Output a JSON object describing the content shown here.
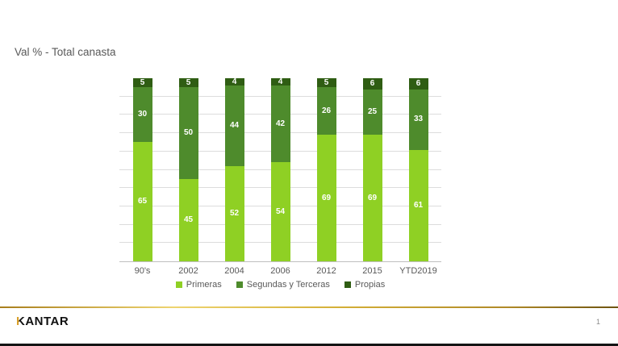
{
  "slide": {
    "title": "Val % - Total canasta",
    "logo_k": "K",
    "logo_rest": "ANTAR",
    "page_number": "1"
  },
  "colors": {
    "title_text": "#595959",
    "gold_divider": "#D4AF37",
    "logo_accent": "#D9A02C",
    "axis_line": "#BFBFBF",
    "gridline": "#DCDCDC",
    "bar_value_label": "#FFFFFF"
  },
  "chart_data": {
    "type": "bar",
    "stacked": true,
    "title": "Val % - Total canasta",
    "categories": [
      "90's",
      "2002",
      "2004",
      "2006",
      "2012",
      "2015",
      "YTD2019"
    ],
    "series": [
      {
        "name": "Primeras",
        "color": "#8FD024",
        "values": [
          65,
          45,
          52,
          54,
          69,
          69,
          61
        ]
      },
      {
        "name": "Segundas y Terceras",
        "color": "#4E8B2C",
        "values": [
          30,
          50,
          44,
          42,
          26,
          25,
          33
        ]
      },
      {
        "name": "Propias",
        "color": "#2F5D13",
        "values": [
          5,
          5,
          4,
          4,
          5,
          6,
          6
        ]
      }
    ],
    "xlabel": "",
    "ylabel": "",
    "ylim": [
      0,
      100
    ],
    "gridline_step": 10,
    "grid": true,
    "y_axis_labels_visible": false,
    "legend_position": "bottom",
    "data_labels": "inside-center-white"
  }
}
